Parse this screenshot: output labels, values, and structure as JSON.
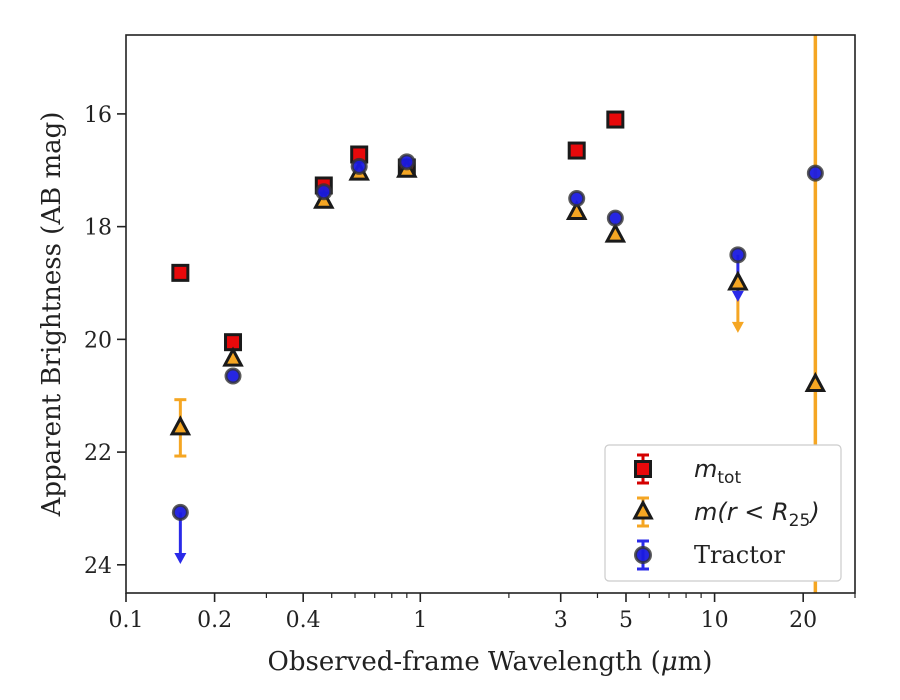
{
  "chart_data": {
    "type": "scatter",
    "title": "",
    "xlabel_pre": "Observed-frame Wavelength (",
    "xlabel_mu": "μ",
    "xlabel_post": "m)",
    "ylabel": "Apparent Brightness (AB mag)",
    "xscale": "log",
    "xlim": [
      0.1,
      30
    ],
    "ylim": [
      24.5,
      14.6
    ],
    "y_inverted": true,
    "xticks": [
      {
        "value": 0.1,
        "label": "0.1"
      },
      {
        "value": 0.2,
        "label": "0.2"
      },
      {
        "value": 0.4,
        "label": "0.4"
      },
      {
        "value": 1,
        "label": "1"
      },
      {
        "value": 3,
        "label": "3"
      },
      {
        "value": 5,
        "label": "5"
      },
      {
        "value": 10,
        "label": "10"
      },
      {
        "value": 20,
        "label": "20"
      }
    ],
    "yticks": [
      {
        "value": 16,
        "label": "16"
      },
      {
        "value": 18,
        "label": "18"
      },
      {
        "value": 20,
        "label": "20"
      },
      {
        "value": 22,
        "label": "22"
      },
      {
        "value": 24,
        "label": "24"
      }
    ],
    "legend_position": "lower-right",
    "series": [
      {
        "key": "mtot",
        "legend_main": "m",
        "legend_sub": "tot",
        "legend_rest": "",
        "marker": "square",
        "face_color": "#e8090b",
        "edge_color": "#1a1a1a",
        "error_color": "#d40000",
        "points": [
          {
            "x": 0.153,
            "y": 18.82
          },
          {
            "x": 0.231,
            "y": 20.05
          },
          {
            "x": 0.47,
            "y": 17.27
          },
          {
            "x": 0.62,
            "y": 16.72
          },
          {
            "x": 0.9,
            "y": 16.95
          },
          {
            "x": 3.4,
            "y": 16.65
          },
          {
            "x": 4.6,
            "y": 16.1
          }
        ]
      },
      {
        "key": "mr25",
        "legend_main": "m",
        "legend_sub": "25",
        "legend_rest": "(r < R",
        "marker": "triangle",
        "face_color": "#f5a623",
        "edge_color": "#1a1a1a",
        "error_color": "#f5a623",
        "points": [
          {
            "x": 0.153,
            "y": 21.57,
            "yerr": 0.5
          },
          {
            "x": 0.231,
            "y": 20.35
          },
          {
            "x": 0.47,
            "y": 17.55
          },
          {
            "x": 0.62,
            "y": 17.05
          },
          {
            "x": 0.9,
            "y": 17.0
          },
          {
            "x": 3.4,
            "y": 17.75
          },
          {
            "x": 4.6,
            "y": 18.15
          },
          {
            "x": 12.0,
            "y": 19.0,
            "upper_limit": 19.85
          },
          {
            "x": 22.0,
            "y": 20.8,
            "yerr_full": true
          }
        ]
      },
      {
        "key": "tractor",
        "legend_main": "Tractor",
        "legend_sub": "",
        "legend_rest": "",
        "marker": "circle",
        "face_color": "#1a1ae0",
        "edge_color": "#333333",
        "error_color": "#2a2ae8",
        "points": [
          {
            "x": 0.153,
            "y": 23.07,
            "upper_limit": 23.95
          },
          {
            "x": 0.231,
            "y": 20.65
          },
          {
            "x": 0.47,
            "y": 17.38
          },
          {
            "x": 0.62,
            "y": 16.93
          },
          {
            "x": 0.9,
            "y": 16.85
          },
          {
            "x": 3.4,
            "y": 17.5
          },
          {
            "x": 4.6,
            "y": 17.85
          },
          {
            "x": 12.0,
            "y": 18.5,
            "upper_limit": 19.3
          },
          {
            "x": 22.0,
            "y": 17.05
          }
        ]
      }
    ]
  }
}
